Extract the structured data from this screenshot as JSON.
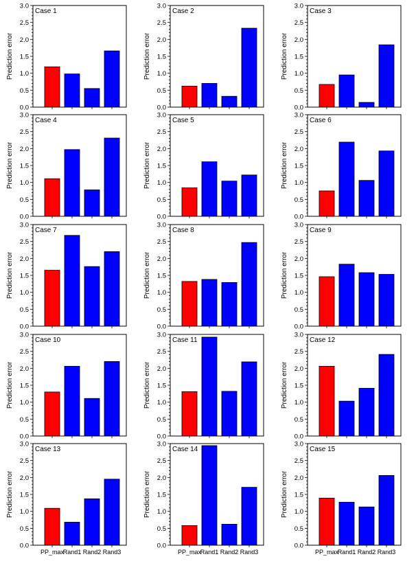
{
  "colors": {
    "highlight": "#ff0000",
    "bar": "#0000ff",
    "axis": "#000000"
  },
  "shared": {
    "ylabel": "Prediction error",
    "categories": [
      "PP_max",
      "Rand1",
      "Rand2",
      "Rand3"
    ],
    "yticks": [
      "0.0",
      "0.5",
      "1.0",
      "1.5",
      "2.0",
      "2.5",
      "3.0"
    ],
    "ylim": [
      0,
      3
    ]
  },
  "chart_data": [
    {
      "type": "bar",
      "title": "Case 1",
      "categories": [
        "PP_max",
        "Rand1",
        "Rand2",
        "Rand3"
      ],
      "values": [
        1.19,
        0.98,
        0.55,
        1.66
      ],
      "ylabel": "Prediction error",
      "ylim": [
        0,
        3
      ]
    },
    {
      "type": "bar",
      "title": "Case 2",
      "categories": [
        "PP_max",
        "Rand1",
        "Rand2",
        "Rand3"
      ],
      "values": [
        0.62,
        0.7,
        0.32,
        2.33
      ],
      "ylabel": "Prediction error",
      "ylim": [
        0,
        3
      ]
    },
    {
      "type": "bar",
      "title": "Case 3",
      "categories": [
        "PP_max",
        "Rand1",
        "Rand2",
        "Rand3"
      ],
      "values": [
        0.67,
        0.95,
        0.14,
        1.84
      ],
      "ylabel": "Prediction error",
      "ylim": [
        0,
        3
      ]
    },
    {
      "type": "bar",
      "title": "Case 4",
      "categories": [
        "PP_max",
        "Rand1",
        "Rand2",
        "Rand3"
      ],
      "values": [
        1.11,
        1.97,
        0.78,
        2.31
      ],
      "ylabel": "Prediction error",
      "ylim": [
        0,
        3
      ]
    },
    {
      "type": "bar",
      "title": "Case 5",
      "categories": [
        "PP_max",
        "Rand1",
        "Rand2",
        "Rand3"
      ],
      "values": [
        0.84,
        1.61,
        1.04,
        1.22
      ],
      "ylabel": "Prediction error",
      "ylim": [
        0,
        3
      ]
    },
    {
      "type": "bar",
      "title": "Case 6",
      "categories": [
        "PP_max",
        "Rand1",
        "Rand2",
        "Rand3"
      ],
      "values": [
        0.75,
        2.19,
        1.06,
        1.93
      ],
      "ylabel": "Prediction error",
      "ylim": [
        0,
        3
      ]
    },
    {
      "type": "bar",
      "title": "Case 7",
      "categories": [
        "PP_max",
        "Rand1",
        "Rand2",
        "Rand3"
      ],
      "values": [
        1.65,
        2.68,
        1.76,
        2.2
      ],
      "ylabel": "Prediction error",
      "ylim": [
        0,
        3
      ]
    },
    {
      "type": "bar",
      "title": "Case 8",
      "categories": [
        "PP_max",
        "Rand1",
        "Rand2",
        "Rand3"
      ],
      "values": [
        1.32,
        1.38,
        1.29,
        2.47
      ],
      "ylabel": "Prediction error",
      "ylim": [
        0,
        3
      ]
    },
    {
      "type": "bar",
      "title": "Case 9",
      "categories": [
        "PP_max",
        "Rand1",
        "Rand2",
        "Rand3"
      ],
      "values": [
        1.46,
        1.83,
        1.58,
        1.53
      ],
      "ylabel": "Prediction error",
      "ylim": [
        0,
        3
      ]
    },
    {
      "type": "bar",
      "title": "Case 10",
      "categories": [
        "PP_max",
        "Rand1",
        "Rand2",
        "Rand3"
      ],
      "values": [
        1.3,
        2.06,
        1.11,
        2.2
      ],
      "ylabel": "Prediction error",
      "ylim": [
        0,
        3
      ]
    },
    {
      "type": "bar",
      "title": "Case 11",
      "categories": [
        "PP_max",
        "Rand1",
        "Rand2",
        "Rand3"
      ],
      "values": [
        1.31,
        2.92,
        1.32,
        2.19
      ],
      "ylabel": "Prediction error",
      "ylim": [
        0,
        3
      ]
    },
    {
      "type": "bar",
      "title": "Case 12",
      "categories": [
        "PP_max",
        "Rand1",
        "Rand2",
        "Rand3"
      ],
      "values": [
        2.06,
        1.03,
        1.41,
        2.41
      ],
      "ylabel": "Prediction error",
      "ylim": [
        0,
        3
      ]
    },
    {
      "type": "bar",
      "title": "Case 13",
      "categories": [
        "PP_max",
        "Rand1",
        "Rand2",
        "Rand3"
      ],
      "values": [
        1.09,
        0.68,
        1.37,
        1.95
      ],
      "ylabel": "Prediction error",
      "ylim": [
        0,
        3
      ]
    },
    {
      "type": "bar",
      "title": "Case 14",
      "categories": [
        "PP_max",
        "Rand1",
        "Rand2",
        "Rand3"
      ],
      "values": [
        0.58,
        2.94,
        0.62,
        1.71
      ],
      "ylabel": "Prediction error",
      "ylim": [
        0,
        3
      ]
    },
    {
      "type": "bar",
      "title": "Case 15",
      "categories": [
        "PP_max",
        "Rand1",
        "Rand2",
        "Rand3"
      ],
      "values": [
        1.39,
        1.27,
        1.13,
        2.06
      ],
      "ylabel": "Prediction error",
      "ylim": [
        0,
        3
      ]
    }
  ]
}
